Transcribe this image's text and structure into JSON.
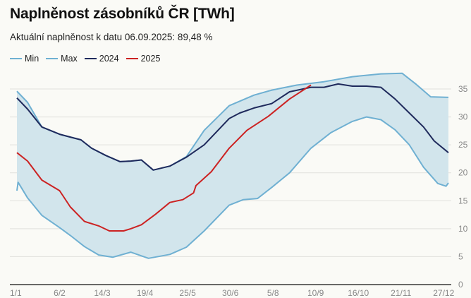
{
  "chart_data": {
    "type": "area",
    "title": "Naplněnost zásobníků ČR [TWh]",
    "subtitle": "Aktuální naplněnost k datu 06.09.2025: 89,48 %",
    "xlabel": "",
    "ylabel": "TWh",
    "ylim": [
      0,
      35
    ],
    "xlim_day_of_year": [
      1,
      365
    ],
    "y_ticks": [
      "0",
      "5",
      "10",
      "15",
      "20",
      "25",
      "30",
      "35"
    ],
    "x_ticks": [
      {
        "label": "1/1",
        "day": 1
      },
      {
        "label": "6/2",
        "day": 37
      },
      {
        "label": "14/3",
        "day": 73
      },
      {
        "label": "19/4",
        "day": 109
      },
      {
        "label": "25/5",
        "day": 145
      },
      {
        "label": "30/6",
        "day": 181
      },
      {
        "label": "5/8",
        "day": 217
      },
      {
        "label": "10/9",
        "day": 253
      },
      {
        "label": "16/10",
        "day": 289
      },
      {
        "label": "21/11",
        "day": 325
      },
      {
        "label": "27/12",
        "day": 361
      }
    ],
    "grid": true,
    "legend_position": "top-left",
    "series": [
      {
        "name": "Min",
        "color": "#6fb0d2",
        "x": [
          1,
          2,
          10,
          22,
          37,
          46,
          58,
          70,
          82,
          97,
          112,
          130,
          144,
          159,
          180,
          192,
          204,
          216,
          231,
          249,
          266,
          284,
          296,
          308,
          320,
          332,
          344,
          356,
          363,
          365
        ],
        "values": [
          16.8,
          18.3,
          15.5,
          12.4,
          10.2,
          8.8,
          6.8,
          5.3,
          4.9,
          5.8,
          4.7,
          5.4,
          6.7,
          9.6,
          14.2,
          15.2,
          15.4,
          17.4,
          20.0,
          24.4,
          27.2,
          29.2,
          30.0,
          29.5,
          27.7,
          25.0,
          21.0,
          18.1,
          17.6,
          18.2
        ]
      },
      {
        "name": "Max",
        "color": "#6fb0d2",
        "x": [
          1,
          10,
          22,
          37,
          46,
          55,
          64,
          76,
          88,
          97,
          106,
          116,
          130,
          144,
          159,
          180,
          201,
          216,
          237,
          260,
          284,
          308,
          326,
          338,
          350,
          365
        ],
        "values": [
          34.6,
          32.6,
          28.2,
          26.9,
          26.4,
          25.9,
          24.4,
          23.1,
          22.0,
          22.1,
          22.3,
          20.5,
          21.2,
          22.9,
          27.6,
          32.0,
          33.9,
          34.8,
          35.7,
          36.3,
          37.2,
          37.7,
          37.8,
          35.8,
          33.6,
          33.5
        ]
      },
      {
        "name": "2024",
        "color": "#1f2a5c",
        "x": [
          1,
          10,
          22,
          37,
          46,
          55,
          64,
          76,
          88,
          97,
          106,
          116,
          130,
          144,
          159,
          180,
          189,
          201,
          216,
          231,
          249,
          260,
          272,
          284,
          296,
          308,
          320,
          332,
          344,
          353,
          365
        ],
        "values": [
          33.4,
          31.4,
          28.2,
          26.9,
          26.4,
          25.9,
          24.4,
          23.1,
          22.0,
          22.1,
          22.3,
          20.5,
          21.2,
          22.8,
          25.0,
          29.7,
          30.7,
          31.6,
          32.4,
          34.5,
          35.3,
          35.3,
          35.9,
          35.5,
          35.5,
          35.3,
          33.2,
          30.7,
          28.2,
          25.7,
          23.6
        ]
      },
      {
        "name": "2025",
        "color": "#cc2222",
        "x": [
          1,
          10,
          22,
          37,
          46,
          58,
          70,
          79,
          91,
          97,
          106,
          118,
          130,
          141,
          150,
          152,
          165,
          180,
          195,
          213,
          231,
          249
        ],
        "values": [
          23.6,
          22.1,
          18.7,
          16.8,
          13.9,
          11.3,
          10.5,
          9.6,
          9.6,
          10.0,
          10.7,
          12.6,
          14.7,
          15.2,
          16.4,
          17.7,
          20.2,
          24.4,
          27.6,
          30.1,
          33.2,
          35.7
        ]
      }
    ]
  }
}
